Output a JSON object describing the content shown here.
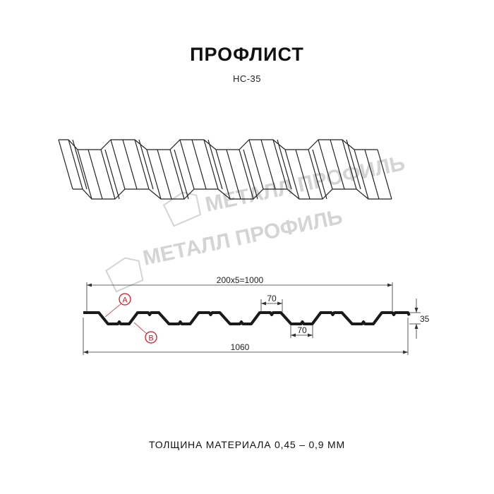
{
  "header": {
    "title": "ПРОФЛИСТ",
    "subtitle": "НС-35"
  },
  "watermark": {
    "text": "МЕТАЛЛ ПРОФИЛЬ"
  },
  "drawing": {
    "dim_total_pitch": "200x5=1000",
    "dim_top_width": "70",
    "dim_bottom_width": "70",
    "dim_height": "35",
    "dim_overall_width": "1060",
    "marker_a": "A",
    "marker_b": "B"
  },
  "colors": {
    "profile": "#1a1a1a",
    "marker": "#e0141e",
    "watermark": "#d4d4d4"
  },
  "footer": {
    "thickness": "ТОЛЩИНА МАТЕРИАЛА 0,45 – 0,9 ММ"
  }
}
